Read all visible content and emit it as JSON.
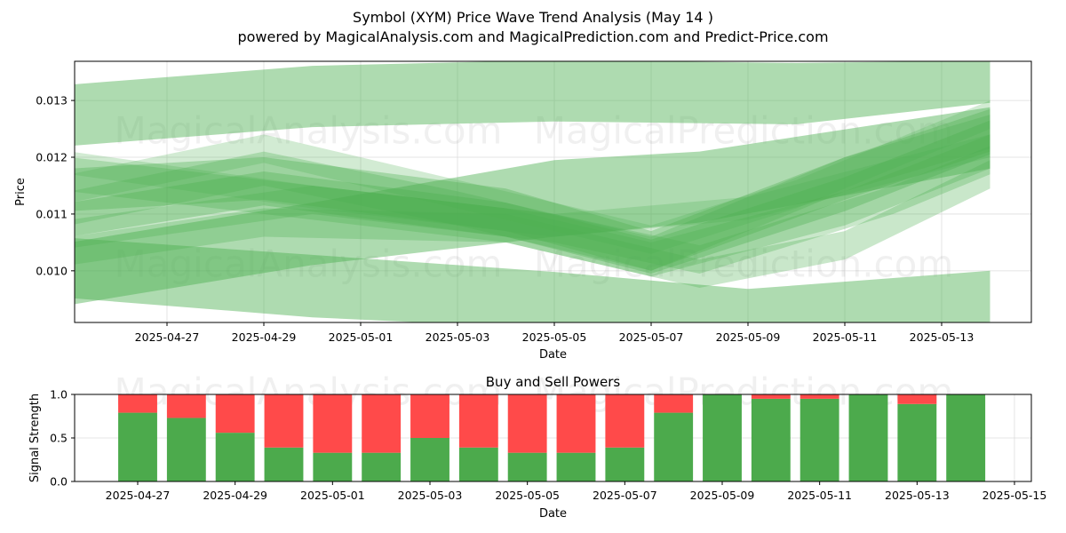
{
  "header": {
    "title": "Symbol (XYM) Price Wave Trend Analysis (May 14 )",
    "subtitle": "powered by MagicalAnalysis.com and MagicalPrediction.com and Predict-Price.com"
  },
  "watermarks": [
    "MagicalAnalysis.com",
    "MagicalPrediction.com"
  ],
  "colors": {
    "band": "#4caf50",
    "buy": "#4caa4c",
    "sell": "#ff4a4a",
    "grid": "#dddddd"
  },
  "chart_data": [
    {
      "type": "area",
      "xlabel": "Date",
      "ylabel": "Price",
      "x_ticks": [
        "2025-04-27",
        "2025-04-29",
        "2025-05-01",
        "2025-05-03",
        "2025-05-05",
        "2025-05-07",
        "2025-05-09",
        "2025-05-11",
        "2025-05-13"
      ],
      "y_ticks": [
        "0.010",
        "0.011",
        "0.012",
        "0.013"
      ],
      "ylim": [
        0.00909,
        0.01369
      ],
      "grid": true,
      "series": [
        {
          "x": [
            "2025-04-25",
            "2025-04-30",
            "2025-05-05",
            "2025-05-10",
            "2025-05-14"
          ],
          "upper": [
            0.01328,
            0.01361,
            0.01371,
            0.01366,
            0.0137
          ],
          "lower": [
            0.0122,
            0.01253,
            0.01263,
            0.01258,
            0.01296
          ],
          "opacity": 0.45
        },
        {
          "x": [
            "2025-04-25",
            "2025-04-30",
            "2025-05-05",
            "2025-05-09",
            "2025-05-14"
          ],
          "upper": [
            0.01058,
            0.01028,
            0.00998,
            0.00968,
            0.01
          ],
          "lower": [
            0.00952,
            0.00918,
            0.00898,
            0.009,
            0.0091
          ],
          "opacity": 0.45
        },
        {
          "x": [
            "2025-04-25",
            "2025-04-30",
            "2025-05-05",
            "2025-05-08",
            "2025-05-14"
          ],
          "upper": [
            0.0105,
            0.0112,
            0.01195,
            0.0121,
            0.01288
          ],
          "lower": [
            0.0094,
            0.0101,
            0.0106,
            0.01085,
            0.0118
          ],
          "opacity": 0.45
        },
        {
          "x": [
            "2025-04-25",
            "2025-04-29",
            "2025-05-04",
            "2025-05-07",
            "2025-05-11",
            "2025-05-14"
          ],
          "upper": [
            0.0118,
            0.012,
            0.01145,
            0.0107,
            0.012,
            0.01285
          ],
          "lower": [
            0.01105,
            0.01125,
            0.0107,
            0.01,
            0.01125,
            0.0121
          ],
          "opacity": 0.35
        },
        {
          "x": [
            "2025-04-25",
            "2025-04-29",
            "2025-05-04",
            "2025-05-07",
            "2025-05-11",
            "2025-05-14"
          ],
          "upper": [
            0.0112,
            0.01175,
            0.0112,
            0.01055,
            0.01165,
            0.01265
          ],
          "lower": [
            0.0106,
            0.01115,
            0.0106,
            0.00995,
            0.01105,
            0.01205
          ],
          "opacity": 0.35
        },
        {
          "x": [
            "2025-04-25",
            "2025-04-29",
            "2025-05-04",
            "2025-05-07",
            "2025-05-11",
            "2025-05-14"
          ],
          "upper": [
            0.012,
            0.0116,
            0.0111,
            0.0105,
            0.0114,
            0.0124
          ],
          "lower": [
            0.0114,
            0.011,
            0.0105,
            0.0099,
            0.0108,
            0.0118
          ],
          "opacity": 0.3
        },
        {
          "x": [
            "2025-04-25",
            "2025-04-29",
            "2025-05-03",
            "2025-05-07",
            "2025-05-11",
            "2025-05-14"
          ],
          "upper": [
            0.0114,
            0.0121,
            0.0114,
            0.0106,
            0.012,
            0.01275
          ],
          "lower": [
            0.0108,
            0.0115,
            0.0108,
            0.01,
            0.0114,
            0.01215
          ],
          "opacity": 0.3
        },
        {
          "x": [
            "2025-04-25",
            "2025-04-30",
            "2025-05-05",
            "2025-05-08",
            "2025-05-12",
            "2025-05-14"
          ],
          "upper": [
            0.0109,
            0.0115,
            0.011,
            0.01045,
            0.0115,
            0.0122
          ],
          "lower": [
            0.0104,
            0.011,
            0.0105,
            0.00995,
            0.011,
            0.0117
          ],
          "opacity": 0.3
        },
        {
          "x": [
            "2025-04-25",
            "2025-04-29",
            "2025-05-03",
            "2025-05-07",
            "2025-05-10",
            "2025-05-14"
          ],
          "upper": [
            0.0117,
            0.0124,
            0.0116,
            0.0108,
            0.0116,
            0.013
          ],
          "lower": [
            0.0112,
            0.0119,
            0.0111,
            0.0103,
            0.0111,
            0.0125
          ],
          "opacity": 0.25
        },
        {
          "x": [
            "2025-04-25",
            "2025-04-29",
            "2025-05-04",
            "2025-05-08",
            "2025-05-11",
            "2025-05-14"
          ],
          "upper": [
            0.0106,
            0.0111,
            0.011,
            0.0102,
            0.0107,
            0.01195
          ],
          "lower": [
            0.0101,
            0.0106,
            0.0105,
            0.0097,
            0.0102,
            0.01145
          ],
          "opacity": 0.3
        },
        {
          "x": [
            "2025-04-25",
            "2025-04-30",
            "2025-05-05",
            "2025-05-09",
            "2025-05-14"
          ],
          "upper": [
            0.0121,
            0.0115,
            0.011,
            0.0113,
            0.0124
          ],
          "lower": [
            0.0117,
            0.0111,
            0.0106,
            0.0109,
            0.012
          ],
          "opacity": 0.25
        }
      ]
    },
    {
      "type": "bar",
      "title": "Buy and Sell Powers",
      "xlabel": "Date",
      "ylabel": "Signal Strength",
      "x_ticks": [
        "2025-04-27",
        "2025-04-29",
        "2025-05-01",
        "2025-05-03",
        "2025-05-05",
        "2025-05-07",
        "2025-05-09",
        "2025-05-11",
        "2025-05-13",
        "2025-05-15"
      ],
      "y_ticks": [
        "0.0",
        "0.5",
        "1.0"
      ],
      "ylim": [
        0,
        1
      ],
      "categories": [
        "2025-04-27",
        "2025-04-28",
        "2025-04-29",
        "2025-04-30",
        "2025-05-01",
        "2025-05-02",
        "2025-05-03",
        "2025-05-04",
        "2025-05-05",
        "2025-05-06",
        "2025-05-07",
        "2025-05-08",
        "2025-05-09",
        "2025-05-10",
        "2025-05-11",
        "2025-05-12",
        "2025-05-13",
        "2025-05-14"
      ],
      "series": [
        {
          "name": "Buy",
          "values": [
            0.79,
            0.73,
            0.56,
            0.39,
            0.33,
            0.33,
            0.5,
            0.39,
            0.33,
            0.33,
            0.39,
            0.79,
            1.0,
            0.95,
            0.95,
            1.0,
            0.89,
            1.0
          ]
        },
        {
          "name": "Sell",
          "values": [
            0.21,
            0.27,
            0.44,
            0.61,
            0.67,
            0.67,
            0.5,
            0.61,
            0.67,
            0.67,
            0.61,
            0.21,
            0.0,
            0.05,
            0.05,
            0.0,
            0.11,
            0.0
          ]
        }
      ]
    }
  ]
}
